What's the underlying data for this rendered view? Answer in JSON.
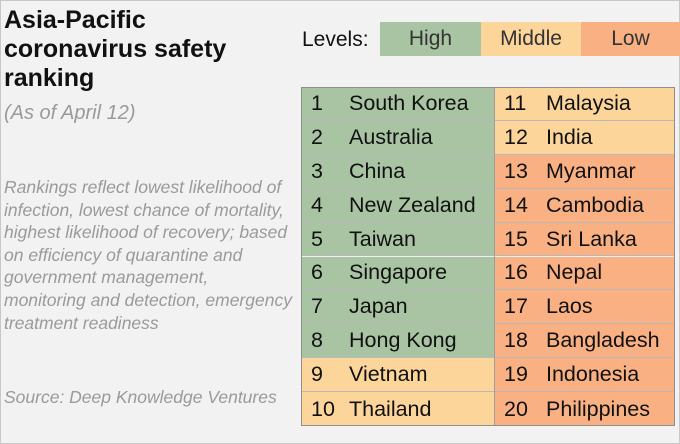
{
  "title": "Asia-Pacific coronavirus safety ranking",
  "subtitle": "(As of April 12)",
  "note": "Rankings reflect lowest likelihood of infection, lowest chance of mortality, highest likelihood of recovery; based on efficiency of quarantine and government management, monitoring and detection, emergency treatment readiness",
  "source": "Source: Deep Knowledge Ventures",
  "legend": {
    "label": "Levels:",
    "items": [
      {
        "label": "High",
        "color": "#a9c4a3"
      },
      {
        "label": "Middle",
        "color": "#fcd59a"
      },
      {
        "label": "Low",
        "color": "#f9b184"
      }
    ]
  },
  "colors": {
    "high": "#a9c4a3",
    "middle": "#fcd59a",
    "low": "#f9b184"
  },
  "rankings": [
    {
      "rank": "1",
      "country": "South Korea",
      "level": "high"
    },
    {
      "rank": "2",
      "country": "Australia",
      "level": "high"
    },
    {
      "rank": "3",
      "country": "China",
      "level": "high"
    },
    {
      "rank": "4",
      "country": "New Zealand",
      "level": "high"
    },
    {
      "rank": "5",
      "country": "Taiwan",
      "level": "high"
    },
    {
      "rank": "6",
      "country": "Singapore",
      "level": "high"
    },
    {
      "rank": "7",
      "country": "Japan",
      "level": "high"
    },
    {
      "rank": "8",
      "country": "Hong Kong",
      "level": "high"
    },
    {
      "rank": "9",
      "country": "Vietnam",
      "level": "middle"
    },
    {
      "rank": "10",
      "country": "Thailand",
      "level": "middle"
    },
    {
      "rank": "11",
      "country": "Malaysia",
      "level": "middle"
    },
    {
      "rank": "12",
      "country": "India",
      "level": "middle"
    },
    {
      "rank": "13",
      "country": "Myanmar",
      "level": "low"
    },
    {
      "rank": "14",
      "country": "Cambodia",
      "level": "low"
    },
    {
      "rank": "15",
      "country": "Sri Lanka",
      "level": "low"
    },
    {
      "rank": "16",
      "country": "Nepal",
      "level": "low"
    },
    {
      "rank": "17",
      "country": "Laos",
      "level": "low"
    },
    {
      "rank": "18",
      "country": "Bangladesh",
      "level": "low"
    },
    {
      "rank": "19",
      "country": "Indonesia",
      "level": "low"
    },
    {
      "rank": "20",
      "country": "Philippines",
      "level": "low"
    }
  ]
}
